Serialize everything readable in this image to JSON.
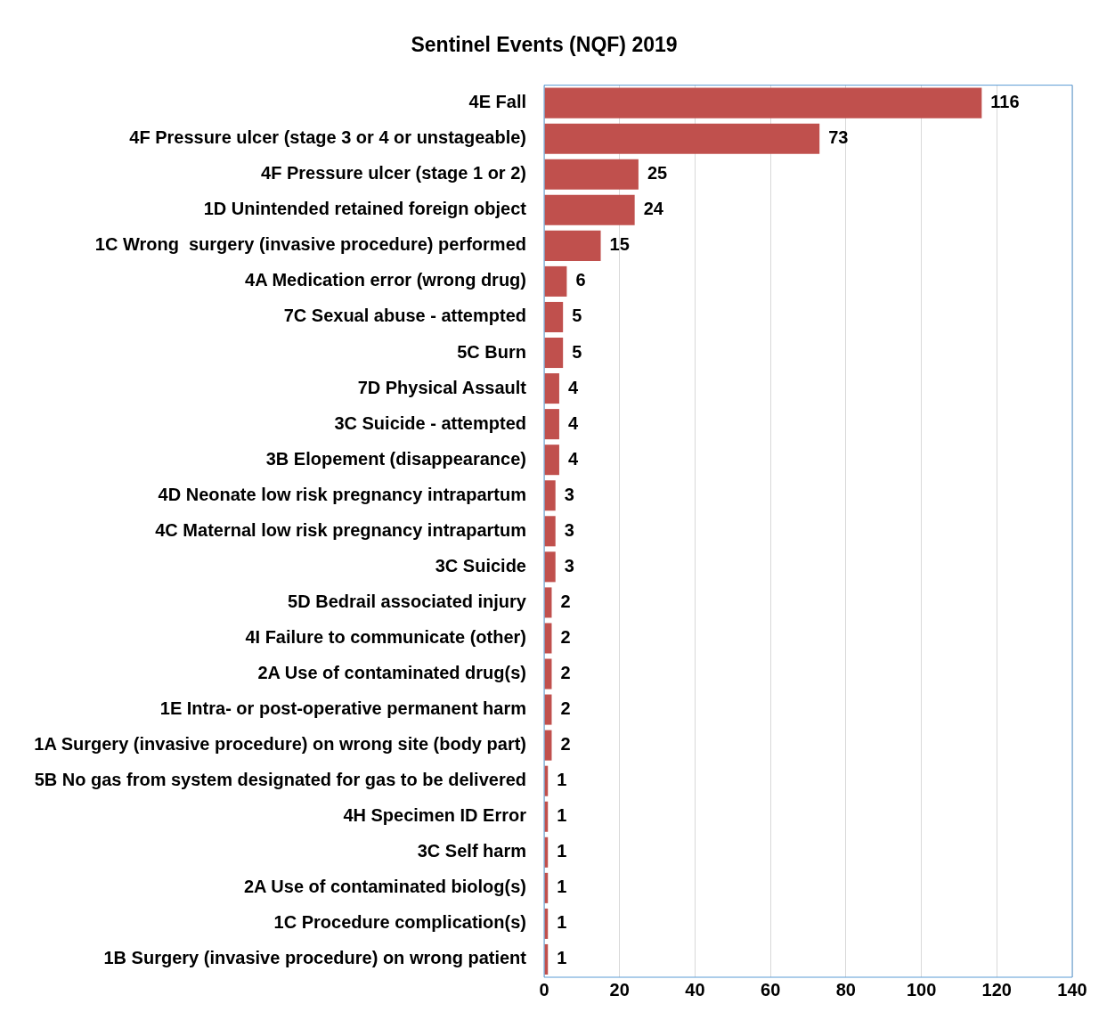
{
  "chart_data": {
    "type": "bar",
    "orientation": "horizontal",
    "title": "Sentinel Events (NQF) 2019",
    "categories": [
      "4E Fall",
      "4F Pressure ulcer (stage 3 or 4 or unstageable)",
      "4F Pressure ulcer (stage 1 or 2)",
      "1D Unintended retained foreign object",
      "1C Wrong  surgery (invasive procedure) performed",
      "4A Medication error (wrong drug)",
      "7C Sexual abuse - attempted",
      "5C Burn",
      "7D Physical Assault",
      "3C Suicide - attempted",
      "3B Elopement (disappearance)",
      "4D Neonate low risk pregnancy intrapartum",
      "4C Maternal low risk pregnancy intrapartum",
      "3C Suicide",
      "5D Bedrail associated injury",
      "4I Failure to communicate (other)",
      "2A Use of contaminated drug(s)",
      "1E Intra- or post-operative permanent harm",
      "1A Surgery (invasive procedure) on wrong site (body part)",
      "5B No gas from system designated for gas to be delivered",
      "4H Specimen ID Error",
      "3C Self harm",
      "2A Use of contaminated biolog(s)",
      "1C Procedure complication(s)",
      "1B Surgery (invasive procedure) on wrong patient"
    ],
    "values": [
      116,
      73,
      25,
      24,
      15,
      6,
      5,
      5,
      4,
      4,
      4,
      3,
      3,
      3,
      2,
      2,
      2,
      2,
      2,
      1,
      1,
      1,
      1,
      1,
      1
    ],
    "color": "#c0504d",
    "xlim": [
      0,
      140
    ],
    "xticks": [
      0,
      20,
      40,
      60,
      80,
      100,
      120,
      140
    ],
    "grid": "x",
    "data_labels": true
  }
}
